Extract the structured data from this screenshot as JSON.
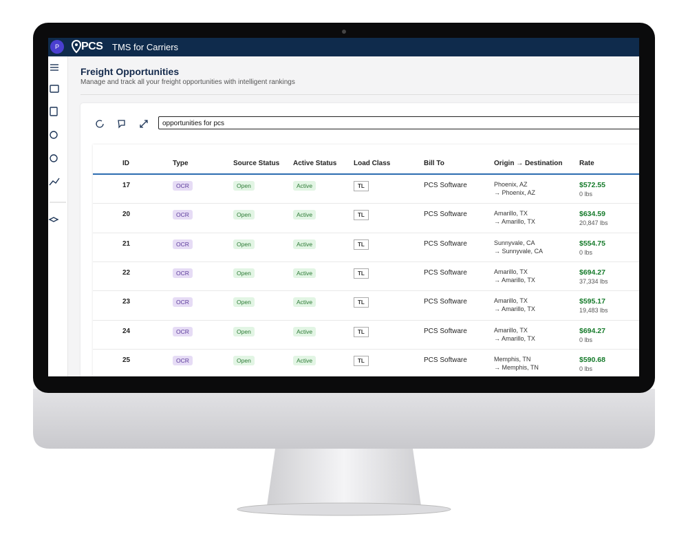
{
  "app": {
    "avatar": "P",
    "brand": "PCS",
    "product": "TMS for Carriers"
  },
  "header": {
    "title": "Freight Opportunities",
    "subtitle": "Manage and track all your freight opportunities with intelligent rankings"
  },
  "search": {
    "value": "opportunities for pcs"
  },
  "table": {
    "columns": [
      "ID",
      "Type",
      "Source Status",
      "Active Status",
      "Load Class",
      "Bill To",
      "Origin → Destination",
      "Rate"
    ],
    "rows": [
      {
        "id": 17,
        "type": "OCR",
        "source_status": "Open",
        "active_status": "Active",
        "load_class": "TL",
        "bill_to": "PCS Software",
        "origin": "Phoenix, AZ",
        "destination": "→ Phoenix, AZ",
        "rate": "$572.55",
        "weight": "0 lbs"
      },
      {
        "id": 20,
        "type": "OCR",
        "source_status": "Open",
        "active_status": "Active",
        "load_class": "TL",
        "bill_to": "PCS Software",
        "origin": "Amarillo, TX",
        "destination": "→ Amarillo, TX",
        "rate": "$634.59",
        "weight": "20,847 lbs"
      },
      {
        "id": 21,
        "type": "OCR",
        "source_status": "Open",
        "active_status": "Active",
        "load_class": "TL",
        "bill_to": "PCS Software",
        "origin": "Sunnyvale, CA",
        "destination": "→ Sunnyvale, CA",
        "rate": "$554.75",
        "weight": "0 lbs"
      },
      {
        "id": 22,
        "type": "OCR",
        "source_status": "Open",
        "active_status": "Active",
        "load_class": "TL",
        "bill_to": "PCS Software",
        "origin": "Amarillo, TX",
        "destination": "→ Amarillo, TX",
        "rate": "$694.27",
        "weight": "37,334 lbs"
      },
      {
        "id": 23,
        "type": "OCR",
        "source_status": "Open",
        "active_status": "Active",
        "load_class": "TL",
        "bill_to": "PCS Software",
        "origin": "Amarillo, TX",
        "destination": "→ Amarillo, TX",
        "rate": "$595.17",
        "weight": "19,483 lbs"
      },
      {
        "id": 24,
        "type": "OCR",
        "source_status": "Open",
        "active_status": "Active",
        "load_class": "TL",
        "bill_to": "PCS Software",
        "origin": "Amarillo, TX",
        "destination": "→ Amarillo, TX",
        "rate": "$694.27",
        "weight": "0 lbs"
      },
      {
        "id": 25,
        "type": "OCR",
        "source_status": "Open",
        "active_status": "Active",
        "load_class": "TL",
        "bill_to": "PCS Software",
        "origin": "Memphis, TN",
        "destination": "→ Memphis, TN",
        "rate": "$590.68",
        "weight": "0 lbs"
      }
    ]
  }
}
